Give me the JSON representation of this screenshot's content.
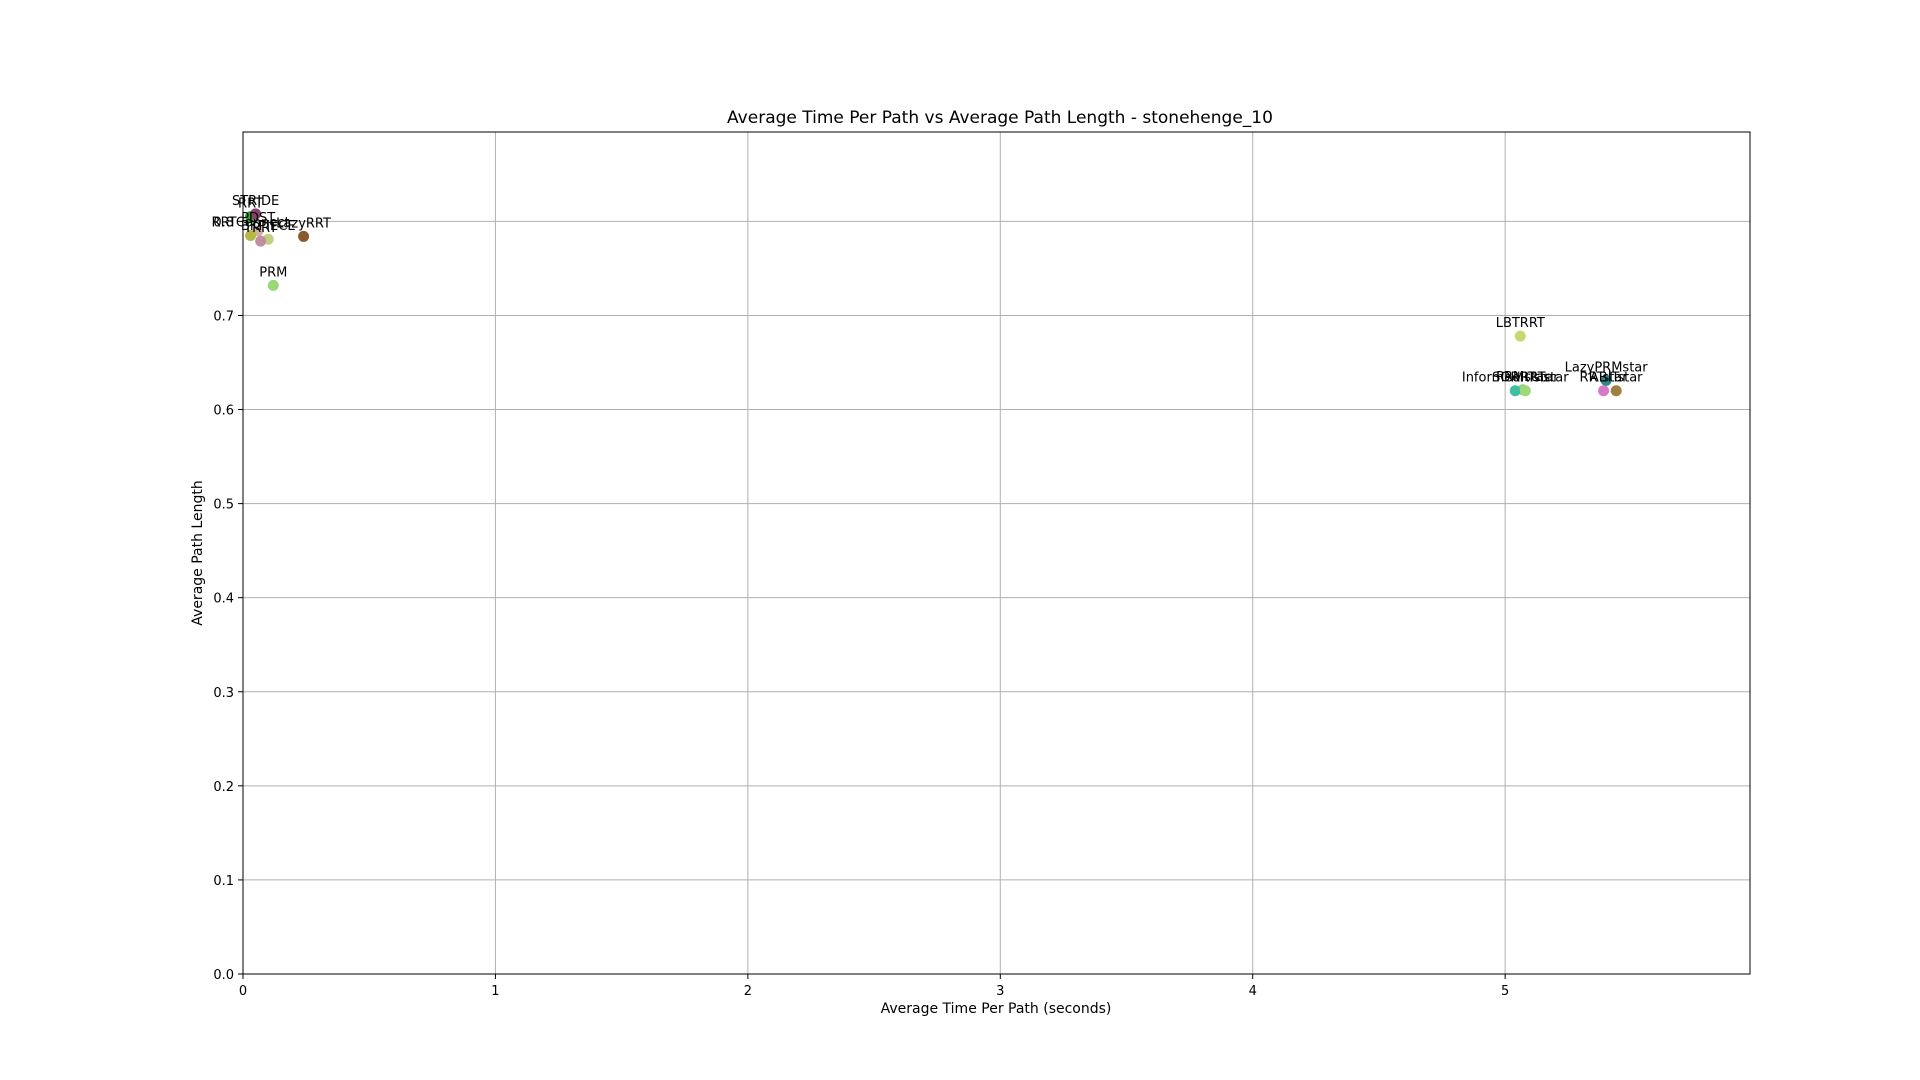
{
  "chart_data": {
    "type": "scatter",
    "title": "Average Time Per Path vs Average Path Length - stonehenge_10",
    "xlabel": "Average Time Per Path (seconds)",
    "ylabel": "Average Path Length",
    "xlim": [
      0,
      5.97
    ],
    "ylim": [
      0,
      0.895
    ],
    "xticks": [
      0,
      1,
      2,
      3,
      4,
      5
    ],
    "yticks": [
      0.0,
      0.1,
      0.2,
      0.3,
      0.4,
      0.5,
      0.6,
      0.7,
      0.8
    ],
    "xtick_labels": [
      "0",
      "1",
      "2",
      "3",
      "4",
      "5"
    ],
    "ytick_labels": [
      "0.0",
      "0.1",
      "0.2",
      "0.3",
      "0.4",
      "0.5",
      "0.6",
      "0.7",
      "0.8"
    ],
    "grid": true,
    "points": [
      {
        "label": "RRT",
        "x": 0.03,
        "y": 0.805,
        "color": "#2ca02c"
      },
      {
        "label": "STRIDE",
        "x": 0.05,
        "y": 0.808,
        "color": "#8c3f6a"
      },
      {
        "label": "PDST",
        "x": 0.06,
        "y": 0.79,
        "color": "#d0b0a0"
      },
      {
        "label": "RRTConnect",
        "x": 0.03,
        "y": 0.785,
        "color": "#b5b845"
      },
      {
        "label": "BKPIECE",
        "x": 0.1,
        "y": 0.781,
        "color": "#c0d080"
      },
      {
        "label": "LazyRRT",
        "x": 0.24,
        "y": 0.784,
        "color": "#8b5a2b"
      },
      {
        "label": "TRRT",
        "x": 0.07,
        "y": 0.779,
        "color": "#c090a0"
      },
      {
        "label": "PRM",
        "x": 0.12,
        "y": 0.732,
        "color": "#98d878"
      },
      {
        "label": "LBTRRT",
        "x": 5.06,
        "y": 0.678,
        "color": "#c8d870"
      },
      {
        "label": "LazyPRMstar",
        "x": 5.4,
        "y": 0.631,
        "color": "#2a8a8a"
      },
      {
        "label": "PRMstar",
        "x": 5.07,
        "y": 0.621,
        "color": "#9ad08a"
      },
      {
        "label": "InformedRRTstar",
        "x": 5.04,
        "y": 0.62,
        "color": "#3fbfa0"
      },
      {
        "label": "SORRTstar",
        "x": 5.08,
        "y": 0.62,
        "color": "#a0d878"
      },
      {
        "label": "RRTstar",
        "x": 5.39,
        "y": 0.62,
        "color": "#d878c8"
      },
      {
        "label": "ABITstar",
        "x": 5.44,
        "y": 0.62,
        "color": "#a08040"
      }
    ]
  }
}
